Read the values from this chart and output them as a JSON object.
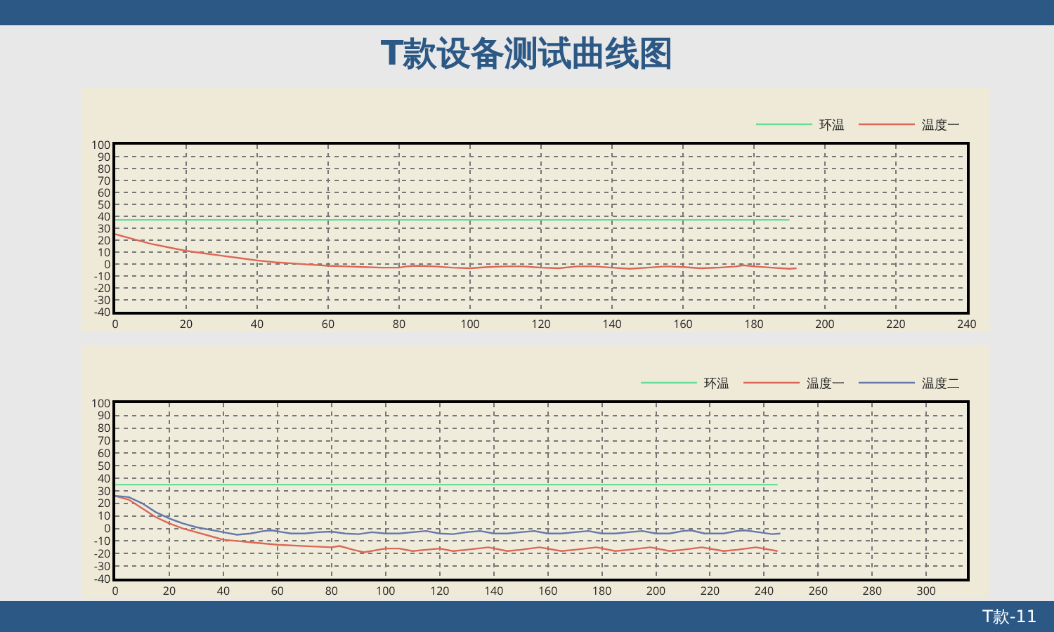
{
  "chart_data": [
    {
      "type": "line",
      "title": "T款设备测试曲线图",
      "xlim": [
        0,
        240
      ],
      "xticks": [
        0,
        20,
        40,
        60,
        80,
        100,
        120,
        140,
        160,
        180,
        200,
        220,
        240
      ],
      "ylim": [
        -40,
        100
      ],
      "yticks": [
        -40,
        -30,
        -20,
        -10,
        0,
        10,
        20,
        30,
        40,
        50,
        60,
        70,
        80,
        90,
        100
      ],
      "grid": true,
      "legend": "top right",
      "line_style": "solid",
      "marker": "none",
      "series": [
        {
          "name": "环温",
          "color": "#66dd99",
          "x": [
            0,
            190
          ],
          "values": [
            37,
            37
          ]
        },
        {
          "name": "温度一",
          "color": "#dd6655",
          "x": [
            0,
            5,
            10,
            15,
            20,
            25,
            30,
            35,
            40,
            45,
            50,
            55,
            60,
            65,
            70,
            75,
            80,
            82,
            85,
            90,
            95,
            100,
            105,
            110,
            115,
            120,
            125,
            130,
            135,
            140,
            145,
            150,
            155,
            160,
            165,
            170,
            175,
            177,
            180,
            185,
            190,
            192
          ],
          "values": [
            25,
            21,
            17,
            14,
            11,
            9,
            7,
            5,
            3,
            1.5,
            0.5,
            -0.5,
            -1.5,
            -2,
            -2.5,
            -3,
            -3,
            -2,
            -1.5,
            -2,
            -3,
            -3.5,
            -2.5,
            -2,
            -2,
            -3,
            -3.5,
            -2,
            -2,
            -3,
            -4,
            -3,
            -2,
            -2.5,
            -3.5,
            -3,
            -2,
            -1,
            -2,
            -3,
            -4,
            -3.5
          ]
        }
      ]
    },
    {
      "type": "line",
      "xlim": [
        0,
        315
      ],
      "xticks": [
        0,
        20,
        40,
        60,
        80,
        100,
        120,
        140,
        160,
        180,
        200,
        220,
        240,
        260,
        280,
        300
      ],
      "ylim": [
        -40,
        100
      ],
      "yticks": [
        -40,
        -30,
        -20,
        -10,
        0,
        10,
        20,
        30,
        40,
        50,
        60,
        70,
        80,
        90,
        100
      ],
      "grid": true,
      "legend": "top right",
      "line_style": "solid",
      "marker": "none",
      "annotations": [
        "T款-11"
      ],
      "series": [
        {
          "name": "环温",
          "color": "#66dd99",
          "x": [
            0,
            245
          ],
          "values": [
            35,
            35
          ]
        },
        {
          "name": "温度一",
          "color": "#dd6655",
          "x": [
            0,
            5,
            10,
            15,
            20,
            25,
            30,
            35,
            40,
            45,
            50,
            55,
            60,
            70,
            80,
            83,
            88,
            92,
            100,
            105,
            110,
            115,
            120,
            125,
            130,
            138,
            145,
            150,
            157,
            165,
            170,
            178,
            185,
            190,
            198,
            205,
            210,
            217,
            225,
            230,
            237,
            245
          ],
          "values": [
            26,
            23,
            16,
            9,
            4,
            0,
            -3,
            -6,
            -9,
            -10,
            -11,
            -12,
            -13,
            -14,
            -15,
            -14,
            -17,
            -19,
            -16,
            -16,
            -18,
            -17,
            -16,
            -18,
            -17,
            -15,
            -18,
            -17,
            -15,
            -18,
            -17,
            -15,
            -18,
            -17,
            -15,
            -18,
            -17,
            -15,
            -18,
            -17,
            -15,
            -18
          ]
        },
        {
          "name": "温度二",
          "color": "#6677aa",
          "x": [
            0,
            5,
            10,
            15,
            20,
            25,
            30,
            35,
            40,
            45,
            50,
            55,
            58,
            62,
            65,
            70,
            75,
            80,
            85,
            90,
            95,
            100,
            105,
            110,
            115,
            120,
            125,
            130,
            135,
            140,
            145,
            150,
            155,
            160,
            165,
            170,
            175,
            180,
            185,
            190,
            195,
            200,
            205,
            210,
            213,
            218,
            225,
            230,
            233,
            238,
            243,
            246
          ],
          "values": [
            26,
            25,
            20,
            13,
            8,
            4,
            1,
            -1,
            -3,
            -5,
            -4,
            -2,
            -1.5,
            -3,
            -4,
            -4,
            -3,
            -2.5,
            -4,
            -4.5,
            -3,
            -4,
            -4,
            -3,
            -2,
            -4,
            -4.5,
            -3,
            -2,
            -4,
            -4,
            -3,
            -2,
            -4,
            -4,
            -3,
            -2,
            -4,
            -4,
            -3,
            -2,
            -4,
            -4,
            -2,
            -1.5,
            -4,
            -4,
            -2,
            -1.5,
            -3,
            -4.5,
            -4
          ]
        }
      ]
    }
  ]
}
